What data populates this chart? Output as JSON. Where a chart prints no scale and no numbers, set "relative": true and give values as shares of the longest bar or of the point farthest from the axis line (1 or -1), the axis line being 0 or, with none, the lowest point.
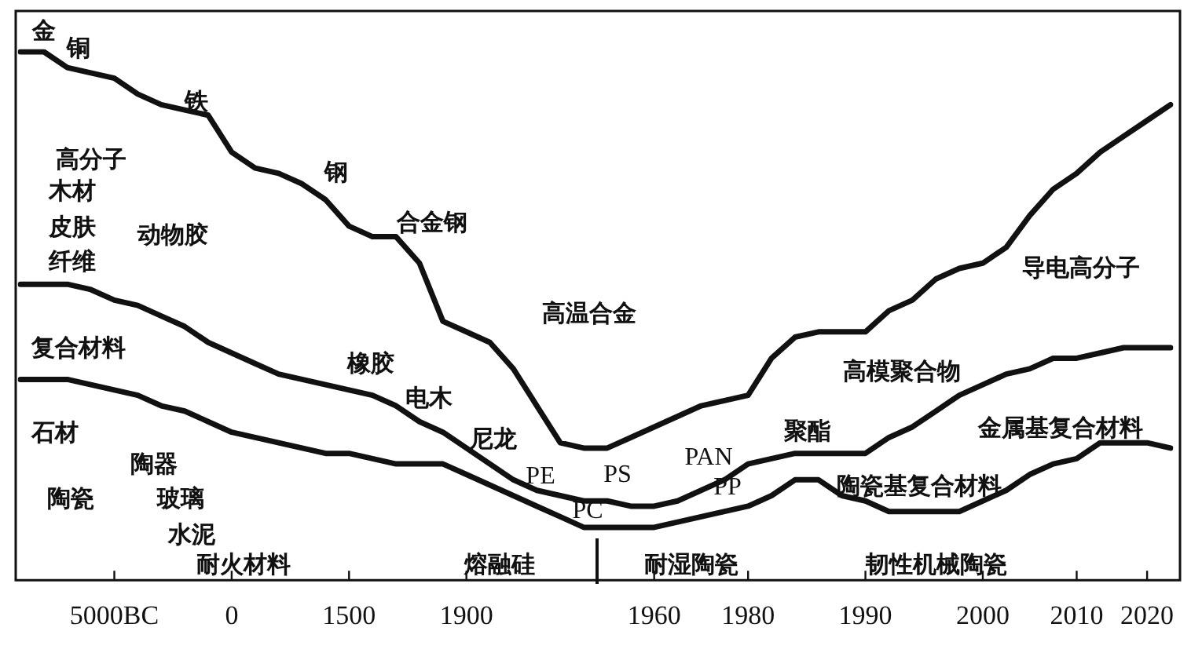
{
  "chart_data": {
    "type": "line",
    "relative": true,
    "marker": "none",
    "line_style": "solid",
    "categories": [
      null,
      null,
      null,
      null,
      "5000BC",
      null,
      null,
      null,
      null,
      "0",
      null,
      null,
      null,
      null,
      "1500",
      null,
      null,
      null,
      null,
      "1900",
      null,
      null,
      null,
      null,
      null,
      null,
      null,
      "1960",
      null,
      null,
      null,
      "1980",
      null,
      null,
      null,
      null,
      "1990",
      null,
      null,
      null,
      null,
      "2000",
      null,
      null,
      null,
      "2010",
      null,
      null,
      "2020",
      null
    ],
    "series": [
      {
        "color": "#111111",
        "values": [
          1.0,
          1.0,
          0.97,
          0.96,
          0.95,
          0.92,
          0.9,
          0.89,
          0.88,
          0.81,
          0.78,
          0.77,
          0.75,
          0.72,
          0.67,
          0.65,
          0.65,
          0.6,
          0.49,
          0.47,
          0.45,
          0.4,
          0.33,
          0.26,
          0.25,
          0.25,
          0.27,
          0.29,
          0.31,
          0.33,
          0.34,
          0.35,
          0.42,
          0.46,
          0.47,
          0.47,
          0.47,
          0.51,
          0.53,
          0.57,
          0.59,
          0.6,
          0.63,
          0.69,
          0.74,
          0.77,
          0.81,
          0.84,
          0.87,
          0.9
        ]
      },
      {
        "color": "#111111",
        "values": [
          0.56,
          0.56,
          0.56,
          0.55,
          0.53,
          0.52,
          0.5,
          0.48,
          0.45,
          0.43,
          0.41,
          0.39,
          0.38,
          0.37,
          0.36,
          0.35,
          0.33,
          0.3,
          0.28,
          0.25,
          0.22,
          0.19,
          0.17,
          0.16,
          0.15,
          0.15,
          0.14,
          0.14,
          0.15,
          0.17,
          0.19,
          0.22,
          0.23,
          0.24,
          0.24,
          0.24,
          0.24,
          0.27,
          0.29,
          0.32,
          0.35,
          0.37,
          0.39,
          0.4,
          0.42,
          0.42,
          0.43,
          0.44,
          0.44,
          0.44
        ]
      },
      {
        "color": "#111111",
        "values": [
          0.38,
          0.38,
          0.38,
          0.37,
          0.36,
          0.35,
          0.33,
          0.32,
          0.3,
          0.28,
          0.27,
          0.26,
          0.25,
          0.24,
          0.24,
          0.23,
          0.22,
          0.22,
          0.22,
          0.2,
          0.18,
          0.16,
          0.14,
          0.12,
          0.1,
          0.1,
          0.1,
          0.1,
          0.11,
          0.12,
          0.13,
          0.14,
          0.16,
          0.19,
          0.19,
          0.16,
          0.15,
          0.13,
          0.13,
          0.13,
          0.13,
          0.15,
          0.17,
          0.2,
          0.22,
          0.23,
          0.26,
          0.26,
          0.26,
          0.25
        ]
      }
    ],
    "annotations": [
      "金",
      "铜",
      "铁",
      "钢",
      "合金钢",
      "高分子",
      "木材",
      "皮肤",
      "纤维",
      "动物胶",
      "高温合金",
      "导电高分子",
      "复合材料",
      "橡胶",
      "电木",
      "尼龙",
      "PE",
      "PC",
      "PS",
      "PAN",
      "PP",
      "聚酯",
      "高模聚合物",
      "金属基复合材料",
      "陶瓷基复合材料",
      "石材",
      "陶器",
      "陶瓷",
      "玻璃",
      "水泥",
      "耐火材料",
      "熔融硅",
      "耐湿陶瓷",
      "韧性机械陶瓷"
    ]
  }
}
